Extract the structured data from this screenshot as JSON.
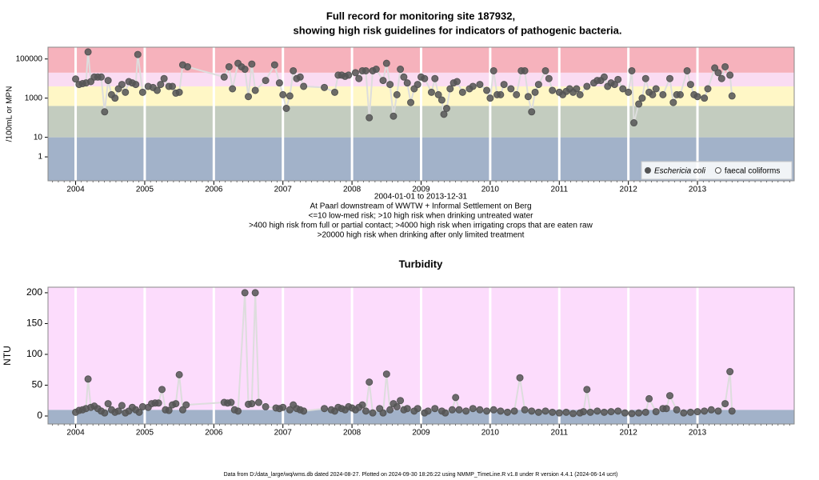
{
  "chart_data": [
    {
      "type": "scatter",
      "title": [
        "Full record for monitoring site 187932,",
        "showing high risk guidelines for indicators of pathogenic bacteria."
      ],
      "ylabel": "/100mL or MPN",
      "yscale": "log",
      "ylim": [
        0.06,
        400000
      ],
      "yticks": [
        1,
        10,
        1000,
        100000
      ],
      "xlim": [
        2003.6,
        2014.4
      ],
      "xticks": [
        2004,
        2005,
        2006,
        2007,
        2008,
        2009,
        2010,
        2011,
        2012,
        2013
      ],
      "grid": true,
      "legend": "lower right",
      "line_color": "#dddddd",
      "bands": [
        {
          "from": 0.06,
          "to": 10,
          "color": "#a2b2c9"
        },
        {
          "from": 10,
          "to": 400,
          "color": "#c3ccbf"
        },
        {
          "from": 400,
          "to": 4000,
          "color": "#fff7c6"
        },
        {
          "from": 4000,
          "to": 20000,
          "color": "#fadcf2"
        },
        {
          "from": 20000,
          "to": 400000,
          "color": "#f6b2bc"
        }
      ],
      "notes": [
        "2004-01-01 to 2013-12-31",
        "At Paarl downstream of WWTW + Informal Settlement on Berg",
        "<=10 low-med risk; >10 high risk when drinking untreated water",
        ">400 high risk from full or partial contact; >4000 high risk when irrigating crops that are eaten raw",
        ">20000 high risk when drinking after only limited treatment"
      ],
      "series": [
        {
          "name": "Eschericia coli",
          "color": "#555555",
          "filled": true,
          "x": [
            2004.0,
            2004.05,
            2004.1,
            2004.15,
            2004.18,
            2004.22,
            2004.27,
            2004.32,
            2004.37,
            2004.42,
            2004.47,
            2004.52,
            2004.57,
            2004.62,
            2004.67,
            2004.72,
            2004.77,
            2004.82,
            2004.87,
            2004.9,
            2004.97,
            2005.05,
            2005.12,
            2005.18,
            2005.23,
            2005.28,
            2005.35,
            2005.4,
            2005.45,
            2005.5,
            2005.55,
            2005.62,
            2006.15,
            2006.22,
            2006.27,
            2006.35,
            2006.4,
            2006.45,
            2006.5,
            2006.55,
            2006.6,
            2006.75,
            2006.88,
            2006.95,
            2007.0,
            2007.05,
            2007.1,
            2007.15,
            2007.2,
            2007.25,
            2007.3,
            2007.6,
            2007.75,
            2007.8,
            2007.85,
            2007.9,
            2007.95,
            2008.05,
            2008.1,
            2008.15,
            2008.2,
            2008.25,
            2008.3,
            2008.35,
            2008.45,
            2008.5,
            2008.55,
            2008.6,
            2008.65,
            2008.7,
            2008.75,
            2008.8,
            2008.85,
            2008.9,
            2008.95,
            2009.0,
            2009.05,
            2009.15,
            2009.2,
            2009.25,
            2009.3,
            2009.33,
            2009.37,
            2009.42,
            2009.47,
            2009.52,
            2009.6,
            2009.7,
            2009.75,
            2009.85,
            2009.95,
            2010.0,
            2010.05,
            2010.1,
            2010.15,
            2010.2,
            2010.3,
            2010.38,
            2010.45,
            2010.5,
            2010.55,
            2010.6,
            2010.65,
            2010.7,
            2010.8,
            2010.85,
            2010.9,
            2011.0,
            2011.05,
            2011.1,
            2011.15,
            2011.2,
            2011.25,
            2011.3,
            2011.4,
            2011.5,
            2011.55,
            2011.6,
            2011.65,
            2011.7,
            2011.75,
            2011.8,
            2011.85,
            2011.92,
            2012.0,
            2012.05,
            2012.08,
            2012.15,
            2012.2,
            2012.25,
            2012.3,
            2012.35,
            2012.4,
            2012.5,
            2012.6,
            2012.65,
            2012.7,
            2012.75,
            2012.85,
            2012.9,
            2012.95,
            2013.0,
            2013.1,
            2013.15,
            2013.25,
            2013.3,
            2013.35,
            2013.4,
            2013.47,
            2013.5
          ],
          "values": [
            9500,
            5000,
            5500,
            6000,
            230000,
            7000,
            12000,
            12000,
            12000,
            200,
            8000,
            1500,
            1000,
            3000,
            5000,
            2000,
            7000,
            6000,
            5000,
            170000,
            2000,
            4000,
            3500,
            2500,
            5000,
            10000,
            4000,
            4000,
            1800,
            2000,
            50000,
            40000,
            12000,
            40000,
            3000,
            60000,
            40000,
            30000,
            1200,
            55000,
            2500,
            8000,
            50000,
            6000,
            1500,
            300,
            1300,
            25000,
            10000,
            12000,
            4000,
            3500,
            2000,
            15000,
            15000,
            13000,
            15000,
            20000,
            10000,
            25000,
            25000,
            100,
            25000,
            30000,
            8000,
            60000,
            5000,
            120,
            1500,
            30000,
            12000,
            6000,
            600,
            3000,
            5000,
            12000,
            10000,
            2000,
            10000,
            1500,
            800,
            150,
            300,
            3000,
            6000,
            7000,
            2000,
            3000,
            4000,
            5000,
            2500,
            1000,
            25000,
            1500,
            1500,
            5000,
            3000,
            1500,
            25000,
            25000,
            1200,
            200,
            2000,
            5000,
            25000,
            10000,
            2500,
            2000,
            1500,
            2200,
            3000,
            2000,
            3000,
            1500,
            4000,
            6000,
            8000,
            8000,
            12000,
            4000,
            6000,
            5000,
            9000,
            3000,
            2000,
            25000,
            55,
            500,
            1000,
            10000,
            2000,
            1500,
            3000,
            1500,
            10000,
            600,
            1500,
            1500,
            25000,
            5000,
            1500,
            1200,
            1000,
            3000,
            35000,
            20000,
            10000,
            40000,
            15000,
            1300
          ]
        },
        {
          "name": "faecal coliforms",
          "color": "#555555",
          "filled": false,
          "x": [],
          "values": []
        }
      ]
    },
    {
      "type": "scatter",
      "title": "Turbidity",
      "ylabel": "NTU",
      "ylim": [
        -13,
        209
      ],
      "yticks": [
        0,
        50,
        100,
        150,
        200
      ],
      "xlim": [
        2003.6,
        2014.4
      ],
      "xticks": [
        2004,
        2005,
        2006,
        2007,
        2008,
        2009,
        2010,
        2011,
        2012,
        2013
      ],
      "grid": true,
      "line_color": "#dddddd",
      "bands": [
        {
          "from": -13,
          "to": 10,
          "color": "#a2b2c9"
        },
        {
          "from": 10,
          "to": 209,
          "color": "#fcdcfc"
        }
      ],
      "series": [
        {
          "color": "#555555",
          "filled": true,
          "x": [
            2004.0,
            2004.05,
            2004.1,
            2004.15,
            2004.18,
            2004.22,
            2004.27,
            2004.32,
            2004.37,
            2004.42,
            2004.47,
            2004.52,
            2004.57,
            2004.62,
            2004.67,
            2004.72,
            2004.77,
            2004.82,
            2004.87,
            2004.92,
            2004.97,
            2005.05,
            2005.1,
            2005.15,
            2005.2,
            2005.25,
            2005.3,
            2005.35,
            2005.4,
            2005.45,
            2005.5,
            2005.55,
            2005.6,
            2006.15,
            2006.2,
            2006.25,
            2006.3,
            2006.35,
            2006.45,
            2006.5,
            2006.55,
            2006.6,
            2006.65,
            2006.75,
            2006.9,
            2006.95,
            2007.0,
            2007.1,
            2007.15,
            2007.2,
            2007.25,
            2007.3,
            2007.6,
            2007.7,
            2007.75,
            2007.8,
            2007.85,
            2007.9,
            2007.95,
            2008.0,
            2008.05,
            2008.1,
            2008.15,
            2008.2,
            2008.25,
            2008.3,
            2008.4,
            2008.45,
            2008.5,
            2008.55,
            2008.6,
            2008.65,
            2008.7,
            2008.75,
            2008.8,
            2008.9,
            2008.95,
            2009.05,
            2009.1,
            2009.2,
            2009.3,
            2009.35,
            2009.45,
            2009.5,
            2009.55,
            2009.65,
            2009.75,
            2009.85,
            2009.95,
            2010.05,
            2010.15,
            2010.25,
            2010.35,
            2010.43,
            2010.5,
            2010.6,
            2010.7,
            2010.8,
            2010.9,
            2011.0,
            2011.1,
            2011.2,
            2011.3,
            2011.35,
            2011.4,
            2011.45,
            2011.55,
            2011.65,
            2011.75,
            2011.85,
            2011.95,
            2012.05,
            2012.15,
            2012.25,
            2012.3,
            2012.4,
            2012.5,
            2012.55,
            2012.6,
            2012.7,
            2012.8,
            2012.9,
            2013.0,
            2013.1,
            2013.2,
            2013.3,
            2013.4,
            2013.47,
            2013.5
          ],
          "values": [
            6,
            9,
            10,
            12,
            60,
            14,
            16,
            12,
            8,
            5,
            20,
            10,
            6,
            8,
            17,
            5,
            8,
            14,
            10,
            6,
            15,
            14,
            20,
            21,
            21,
            43,
            10,
            9,
            18,
            20,
            67,
            10,
            18,
            22,
            21,
            22,
            10,
            8,
            200,
            19,
            20,
            200,
            22,
            15,
            13,
            12,
            14,
            10,
            18,
            12,
            10,
            8,
            12,
            10,
            8,
            14,
            12,
            10,
            15,
            13,
            10,
            14,
            18,
            8,
            55,
            5,
            12,
            5,
            68,
            10,
            20,
            15,
            25,
            10,
            12,
            8,
            12,
            5,
            8,
            12,
            8,
            5,
            10,
            30,
            10,
            8,
            12,
            10,
            8,
            10,
            8,
            6,
            8,
            62,
            10,
            8,
            6,
            8,
            6,
            5,
            6,
            4,
            5,
            7,
            43,
            6,
            8,
            6,
            7,
            8,
            5,
            4,
            5,
            6,
            28,
            7,
            12,
            12,
            33,
            10,
            5,
            6,
            7,
            8,
            10,
            8,
            20,
            72,
            8
          ]
        }
      ]
    }
  ],
  "footer": "Data from D:/data_large/wq/wms.db dated 2024-08-27. Plotted on 2024-09-30 18:26:22 using NMMP_TimeLine.R v1.8 under R version 4.4.1 (2024-06-14 ucrt)"
}
